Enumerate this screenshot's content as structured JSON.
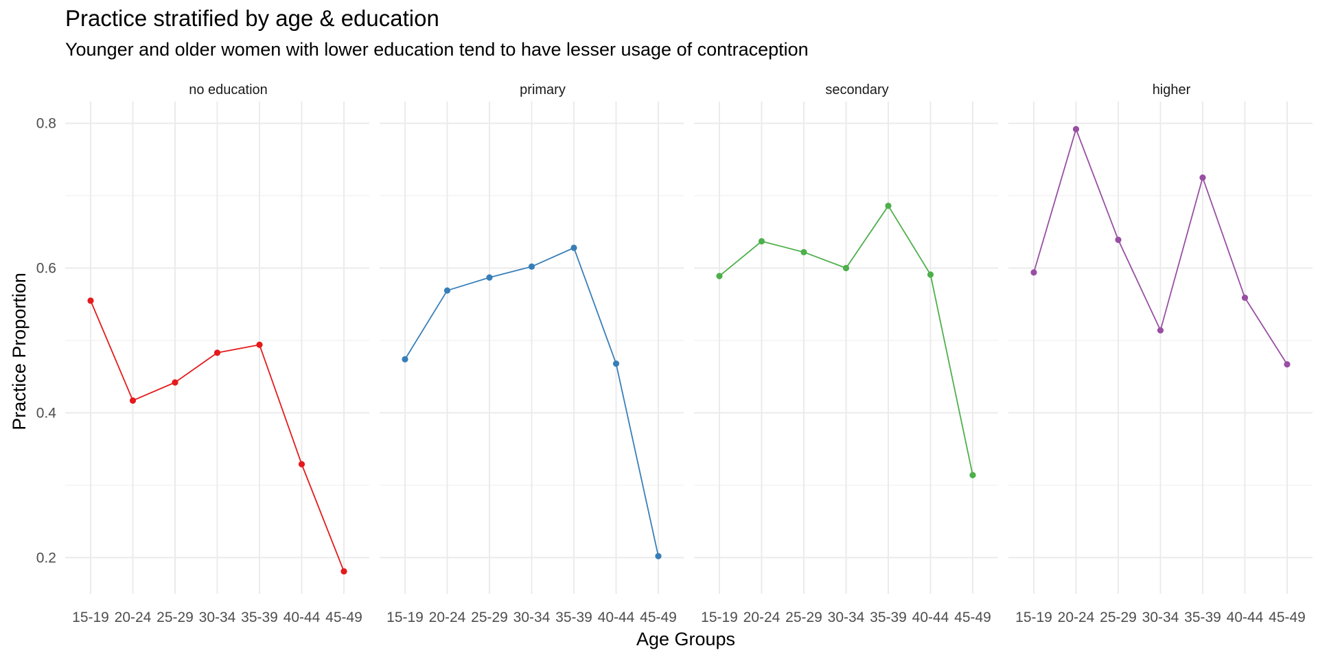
{
  "chart_data": {
    "type": "line",
    "title": "Practice stratified by age & education",
    "subtitle": "Younger and older women with lower education tend to have lesser usage of contraception",
    "xlabel": "Age Groups",
    "ylabel": "Practice Proportion",
    "ylim": [
      0.15,
      0.83
    ],
    "yticks": [
      0.2,
      0.4,
      0.6,
      0.8
    ],
    "ytick_labels": [
      "0.2",
      "0.4",
      "0.6",
      "0.8"
    ],
    "grid": true,
    "legend": "none",
    "categories": [
      "15-19",
      "20-24",
      "25-29",
      "30-34",
      "35-39",
      "40-44",
      "45-49"
    ],
    "panels": [
      {
        "label": "no education",
        "color": "#e41a1c",
        "values": [
          0.555,
          0.417,
          0.442,
          0.483,
          0.494,
          0.329,
          0.181
        ]
      },
      {
        "label": "primary",
        "color": "#377eb8",
        "values": [
          0.474,
          0.569,
          0.587,
          0.602,
          0.628,
          0.468,
          0.202
        ]
      },
      {
        "label": "secondary",
        "color": "#4daf4a",
        "values": [
          0.589,
          0.637,
          0.622,
          0.6,
          0.686,
          0.591,
          0.314
        ]
      },
      {
        "label": "higher",
        "color": "#984ea3",
        "values": [
          0.594,
          0.792,
          0.639,
          0.514,
          0.725,
          0.559,
          0.467
        ]
      }
    ]
  }
}
